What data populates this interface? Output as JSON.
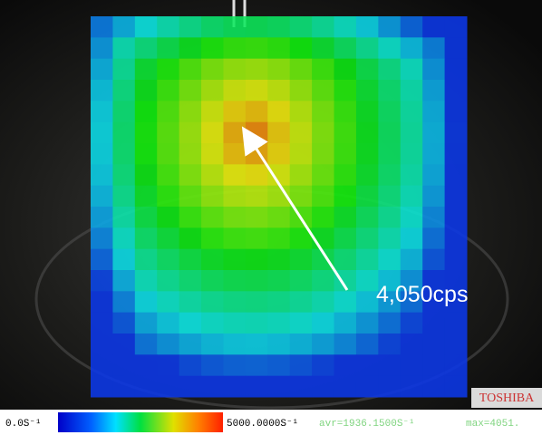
{
  "annotation": "4,050cps",
  "scale": {
    "min_label": "0.0S⁻¹",
    "max_label": "5000.0000S⁻¹",
    "average": "avr=1936.1500S⁻¹",
    "maximum": "max=4051."
  },
  "brand": "TOSHIBA"
}
